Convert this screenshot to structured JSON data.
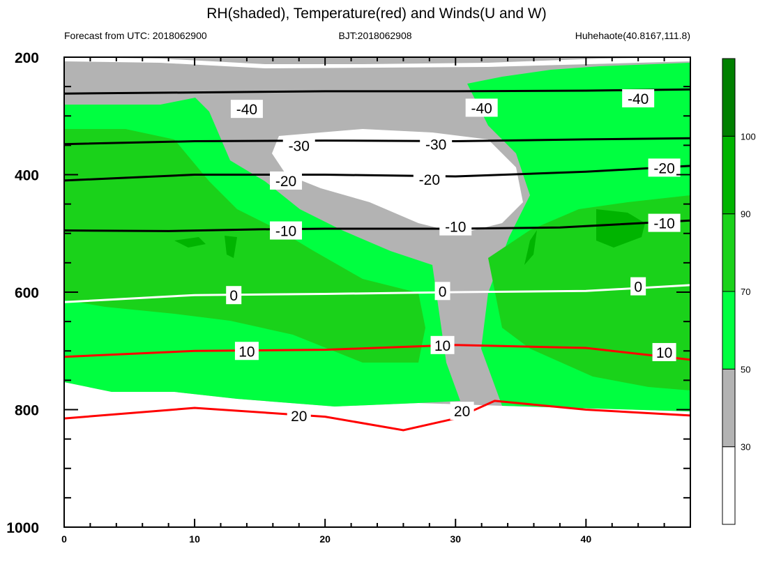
{
  "chart_data": {
    "type": "heatmap",
    "title": "RH(shaded), Temperature(red) and Winds(U and W)",
    "subtitle_left": "Forecast from UTC: 2018062900",
    "subtitle_center": "BJT:2018062908",
    "subtitle_right": "Huhehaote(40.8167,111.8)",
    "x_axis": {
      "range": [
        0,
        48
      ],
      "ticks": [
        0,
        10,
        20,
        30,
        40
      ],
      "tick_labels": [
        "0",
        "10",
        "20",
        "30",
        "40"
      ]
    },
    "y_axis": {
      "range": [
        200,
        1000
      ],
      "ticks": [
        200,
        400,
        600,
        800,
        1000
      ],
      "tick_labels": [
        "200",
        "400",
        "600",
        "800",
        "1000"
      ],
      "inverted": true
    },
    "colorbar": {
      "levels": [
        "30",
        "50",
        "70",
        "90",
        "100"
      ],
      "colors": [
        "#ffffff",
        "#b3b3b3",
        "#00ff40",
        "#1ad21a",
        "#00b400",
        "#008000"
      ]
    },
    "temperature_contours": [
      {
        "level": -40,
        "label": "-40",
        "color": "#000000",
        "points": [
          [
            0,
            262
          ],
          [
            10,
            260
          ],
          [
            20,
            258
          ],
          [
            30,
            258
          ],
          [
            40,
            257
          ],
          [
            48,
            255
          ]
        ]
      },
      {
        "level": -30,
        "label": "-30",
        "color": "#000000",
        "points": [
          [
            0,
            348
          ],
          [
            10,
            343
          ],
          [
            20,
            342
          ],
          [
            30,
            343
          ],
          [
            40,
            340
          ],
          [
            48,
            338
          ]
        ]
      },
      {
        "level": -20,
        "label": "-20",
        "color": "#000000",
        "points": [
          [
            0,
            410
          ],
          [
            10,
            400
          ],
          [
            20,
            400
          ],
          [
            30,
            403
          ],
          [
            40,
            395
          ],
          [
            48,
            385
          ]
        ]
      },
      {
        "level": -10,
        "label": "-10",
        "color": "#000000",
        "points": [
          [
            0,
            495
          ],
          [
            8,
            496
          ],
          [
            15,
            493
          ],
          [
            20,
            492
          ],
          [
            30,
            492
          ],
          [
            38,
            490
          ],
          [
            48,
            478
          ]
        ]
      },
      {
        "level": 0,
        "label": "0",
        "color": "#ffffff",
        "points": [
          [
            0,
            617
          ],
          [
            10,
            605
          ],
          [
            20,
            603
          ],
          [
            30,
            600
          ],
          [
            40,
            598
          ],
          [
            48,
            588
          ]
        ]
      },
      {
        "level": 10,
        "label": "10",
        "color": "#ff0000",
        "points": [
          [
            0,
            710
          ],
          [
            10,
            700
          ],
          [
            20,
            698
          ],
          [
            30,
            690
          ],
          [
            40,
            695
          ],
          [
            48,
            715
          ]
        ]
      },
      {
        "level": 20,
        "label": "20",
        "color": "#ff0000",
        "points": [
          [
            0,
            815
          ],
          [
            10,
            797
          ],
          [
            20,
            812
          ],
          [
            26,
            835
          ],
          [
            30,
            815
          ],
          [
            33,
            785
          ],
          [
            40,
            800
          ],
          [
            48,
            810
          ]
        ]
      }
    ],
    "contour_labels": [
      {
        "text": "-40",
        "x": 14,
        "y": 288
      },
      {
        "text": "-40",
        "x": 32,
        "y": 286
      },
      {
        "text": "-40",
        "x": 44,
        "y": 270
      },
      {
        "text": "-30",
        "x": 18,
        "y": 350
      },
      {
        "text": "-30",
        "x": 28.5,
        "y": 348
      },
      {
        "text": "-20",
        "x": 17,
        "y": 410
      },
      {
        "text": "-20",
        "x": 28,
        "y": 408
      },
      {
        "text": "-20",
        "x": 46,
        "y": 388
      },
      {
        "text": "-10",
        "x": 17,
        "y": 495
      },
      {
        "text": "-10",
        "x": 30,
        "y": 488
      },
      {
        "text": "-10",
        "x": 46,
        "y": 482
      },
      {
        "text": "0",
        "x": 13,
        "y": 605
      },
      {
        "text": "0",
        "x": 29,
        "y": 598
      },
      {
        "text": "0",
        "x": 44,
        "y": 590
      },
      {
        "text": "10",
        "x": 14,
        "y": 700
      },
      {
        "text": "10",
        "x": 29,
        "y": 690
      },
      {
        "text": "10",
        "x": 46,
        "y": 702
      },
      {
        "text": "20",
        "x": 18,
        "y": 810
      },
      {
        "text": "20",
        "x": 30.5,
        "y": 802
      }
    ]
  }
}
